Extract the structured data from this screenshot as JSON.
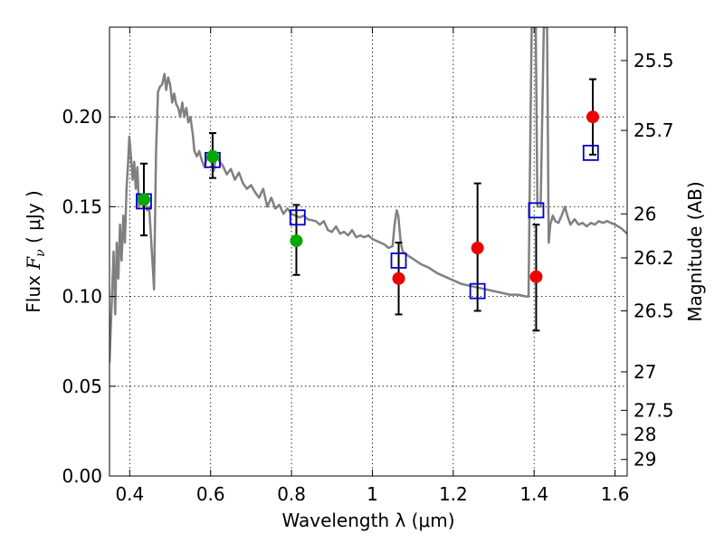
{
  "chart_data": {
    "type": "scatter",
    "title": "",
    "xlabel": "Wavelength  λ (μm)",
    "ylabel": "Flux  F_ν  ( μJy )",
    "ylabel_parts": {
      "prefix": "Flux  ",
      "symbol": "F",
      "subscript": "ν",
      "suffix": "  ( μJy )"
    },
    "y2label": "Magnitude (AB)",
    "xlim": [
      0.35,
      1.63
    ],
    "ylim": [
      0.0,
      0.25
    ],
    "x_ticks": [
      0.4,
      0.6,
      0.8,
      1.0,
      1.2,
      1.4,
      1.6
    ],
    "x_tick_labels": [
      "0.4",
      "0.6",
      "0.8",
      "1",
      "1.2",
      "1.4",
      "1.6"
    ],
    "y_ticks": [
      0.0,
      0.05,
      0.1,
      0.15,
      0.2
    ],
    "y_tick_labels": [
      "0.00",
      "0.05",
      "0.10",
      "0.15",
      "0.20"
    ],
    "y2_ticks": [
      {
        "label": "25.5",
        "flux": 0.2314
      },
      {
        "label": "25.7",
        "flux": 0.1925
      },
      {
        "label": "26",
        "flux": 0.146
      },
      {
        "label": "26.2",
        "flux": 0.1215
      },
      {
        "label": "26.5",
        "flux": 0.092
      },
      {
        "label": "27",
        "flux": 0.058
      },
      {
        "label": "27.5",
        "flux": 0.0366
      },
      {
        "label": "28",
        "flux": 0.0231
      },
      {
        "label": "29",
        "flux": 0.0092
      }
    ],
    "grid": true,
    "colors": {
      "sed_line": "#808080",
      "model_squares": "#0000cc",
      "observed_red": "#ee0000",
      "observed_green": "#00aa00",
      "error_bars": "#000000"
    },
    "series": [
      {
        "kind": "line",
        "points": [
          [
            0.35,
            0.063
          ],
          [
            0.356,
            0.1
          ],
          [
            0.36,
            0.125
          ],
          [
            0.364,
            0.09
          ],
          [
            0.368,
            0.13
          ],
          [
            0.372,
            0.11
          ],
          [
            0.376,
            0.14
          ],
          [
            0.38,
            0.12
          ],
          [
            0.384,
            0.145
          ],
          [
            0.388,
            0.13
          ],
          [
            0.392,
            0.16
          ],
          [
            0.396,
            0.175
          ],
          [
            0.399,
            0.189
          ],
          [
            0.403,
            0.178
          ],
          [
            0.407,
            0.165
          ],
          [
            0.411,
            0.175
          ],
          [
            0.415,
            0.16
          ],
          [
            0.419,
            0.172
          ],
          [
            0.423,
            0.15
          ],
          [
            0.428,
            0.155
          ],
          [
            0.433,
            0.15
          ],
          [
            0.438,
            0.152
          ],
          [
            0.443,
            0.148
          ],
          [
            0.448,
            0.15
          ],
          [
            0.452,
            0.135
          ],
          [
            0.456,
            0.12
          ],
          [
            0.46,
            0.104
          ],
          [
            0.465,
            0.18
          ],
          [
            0.47,
            0.214
          ],
          [
            0.475,
            0.217
          ],
          [
            0.48,
            0.218
          ],
          [
            0.486,
            0.224
          ],
          [
            0.49,
            0.215
          ],
          [
            0.495,
            0.222
          ],
          [
            0.5,
            0.218
          ],
          [
            0.505,
            0.208
          ],
          [
            0.51,
            0.213
          ],
          [
            0.515,
            0.207
          ],
          [
            0.52,
            0.205
          ],
          [
            0.525,
            0.2
          ],
          [
            0.53,
            0.208
          ],
          [
            0.535,
            0.2
          ],
          [
            0.54,
            0.205
          ],
          [
            0.545,
            0.197
          ],
          [
            0.55,
            0.2
          ],
          [
            0.556,
            0.19
          ],
          [
            0.56,
            0.181
          ],
          [
            0.566,
            0.178
          ],
          [
            0.572,
            0.181
          ],
          [
            0.578,
            0.176
          ],
          [
            0.585,
            0.172
          ],
          [
            0.592,
            0.178
          ],
          [
            0.6,
            0.176
          ],
          [
            0.608,
            0.17
          ],
          [
            0.615,
            0.18
          ],
          [
            0.622,
            0.175
          ],
          [
            0.63,
            0.173
          ],
          [
            0.64,
            0.168
          ],
          [
            0.65,
            0.171
          ],
          [
            0.66,
            0.165
          ],
          [
            0.67,
            0.169
          ],
          [
            0.68,
            0.163
          ],
          [
            0.69,
            0.16
          ],
          [
            0.7,
            0.162
          ],
          [
            0.71,
            0.158
          ],
          [
            0.72,
            0.155
          ],
          [
            0.73,
            0.16
          ],
          [
            0.74,
            0.15
          ],
          [
            0.75,
            0.155
          ],
          [
            0.76,
            0.149
          ],
          [
            0.77,
            0.151
          ],
          [
            0.78,
            0.146
          ],
          [
            0.79,
            0.149
          ],
          [
            0.8,
            0.146
          ],
          [
            0.81,
            0.145
          ],
          [
            0.82,
            0.144
          ],
          [
            0.83,
            0.145
          ],
          [
            0.84,
            0.143
          ],
          [
            0.86,
            0.142
          ],
          [
            0.87,
            0.14
          ],
          [
            0.88,
            0.142
          ],
          [
            0.89,
            0.137
          ],
          [
            0.9,
            0.136
          ],
          [
            0.91,
            0.139
          ],
          [
            0.92,
            0.135
          ],
          [
            0.93,
            0.136
          ],
          [
            0.94,
            0.134
          ],
          [
            0.95,
            0.137
          ],
          [
            0.96,
            0.133
          ],
          [
            0.97,
            0.134
          ],
          [
            0.98,
            0.133
          ],
          [
            0.99,
            0.134
          ],
          [
            1.0,
            0.132
          ],
          [
            1.02,
            0.13
          ],
          [
            1.03,
            0.129
          ],
          [
            1.04,
            0.127
          ],
          [
            1.05,
            0.128
          ],
          [
            1.055,
            0.14
          ],
          [
            1.06,
            0.148
          ],
          [
            1.064,
            0.145
          ],
          [
            1.07,
            0.13
          ],
          [
            1.075,
            0.125
          ],
          [
            1.08,
            0.124
          ],
          [
            1.1,
            0.121
          ],
          [
            1.12,
            0.118
          ],
          [
            1.14,
            0.116
          ],
          [
            1.16,
            0.113
          ],
          [
            1.18,
            0.111
          ],
          [
            1.2,
            0.109
          ],
          [
            1.22,
            0.107
          ],
          [
            1.24,
            0.106
          ],
          [
            1.26,
            0.105
          ],
          [
            1.28,
            0.104
          ],
          [
            1.3,
            0.103
          ],
          [
            1.32,
            0.102
          ],
          [
            1.34,
            0.101
          ],
          [
            1.36,
            0.101
          ],
          [
            1.38,
            0.1
          ],
          [
            1.386,
            0.1
          ],
          [
            1.39,
            0.18
          ],
          [
            1.394,
            0.25
          ],
          [
            1.4,
            0.25
          ],
          [
            1.404,
            0.25
          ],
          [
            1.408,
            0.15
          ],
          [
            1.412,
            0.15
          ],
          [
            1.416,
            0.15
          ],
          [
            1.424,
            0.25
          ],
          [
            1.432,
            0.25
          ],
          [
            1.436,
            0.13
          ],
          [
            1.44,
            0.14
          ],
          [
            1.446,
            0.145
          ],
          [
            1.452,
            0.142
          ],
          [
            1.46,
            0.141
          ],
          [
            1.468,
            0.145
          ],
          [
            1.476,
            0.15
          ],
          [
            1.482,
            0.145
          ],
          [
            1.49,
            0.14
          ],
          [
            1.5,
            0.143
          ],
          [
            1.51,
            0.14
          ],
          [
            1.52,
            0.141
          ],
          [
            1.53,
            0.139
          ],
          [
            1.54,
            0.141
          ],
          [
            1.55,
            0.14
          ],
          [
            1.56,
            0.142
          ],
          [
            1.57,
            0.141
          ],
          [
            1.58,
            0.142
          ],
          [
            1.59,
            0.141
          ],
          [
            1.6,
            0.14
          ],
          [
            1.615,
            0.138
          ],
          [
            1.63,
            0.135
          ]
        ]
      },
      {
        "kind": "squares",
        "points": [
          [
            0.435,
            0.153
          ],
          [
            0.605,
            0.176
          ],
          [
            0.815,
            0.144
          ],
          [
            1.065,
            0.12
          ],
          [
            1.26,
            0.103
          ],
          [
            1.405,
            0.148
          ],
          [
            1.54,
            0.18
          ]
        ]
      },
      {
        "kind": "observed_green",
        "points": [
          [
            0.435,
            0.154
          ],
          [
            0.605,
            0.178
          ],
          [
            0.812,
            0.131
          ]
        ]
      },
      {
        "kind": "observed_red",
        "points": [
          [
            1.065,
            0.11
          ],
          [
            1.26,
            0.127
          ],
          [
            1.405,
            0.111
          ],
          [
            1.545,
            0.2
          ]
        ]
      },
      {
        "kind": "errorbars",
        "bars": [
          {
            "x": 0.435,
            "low": 0.134,
            "high": 0.174
          },
          {
            "x": 0.605,
            "low": 0.166,
            "high": 0.191
          },
          {
            "x": 0.812,
            "low": 0.112,
            "high": 0.151
          },
          {
            "x": 1.065,
            "low": 0.09,
            "high": 0.13
          },
          {
            "x": 1.26,
            "low": 0.092,
            "high": 0.163
          },
          {
            "x": 1.405,
            "low": 0.081,
            "high": 0.14
          },
          {
            "x": 1.545,
            "low": 0.179,
            "high": 0.221
          }
        ]
      }
    ]
  }
}
